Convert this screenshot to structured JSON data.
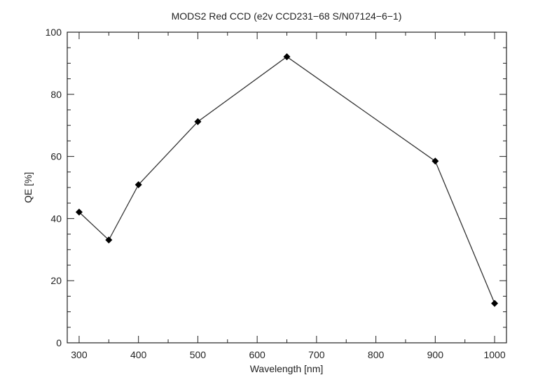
{
  "chart_data": {
    "type": "line",
    "title": "MODS2 Red CCD (e2v CCD231−68 S/N07124−6−1)",
    "xlabel": "Wavelength [nm]",
    "ylabel": "QE [%]",
    "xlim": [
      280,
      1020
    ],
    "ylim": [
      0,
      100
    ],
    "x_ticks": [
      300,
      400,
      500,
      600,
      700,
      800,
      900,
      1000
    ],
    "y_ticks": [
      0,
      20,
      40,
      60,
      80,
      100
    ],
    "x_minor_step": 50,
    "y_minor_step": 5,
    "grid": false,
    "series": [
      {
        "marker": "diamond",
        "color": "#000000",
        "points": [
          {
            "x": 300,
            "y": 42.1
          },
          {
            "x": 350,
            "y": 33.1
          },
          {
            "x": 400,
            "y": 50.9
          },
          {
            "x": 500,
            "y": 71.2
          },
          {
            "x": 650,
            "y": 92.1
          },
          {
            "x": 900,
            "y": 58.5
          },
          {
            "x": 1000,
            "y": 12.7
          }
        ]
      }
    ]
  }
}
